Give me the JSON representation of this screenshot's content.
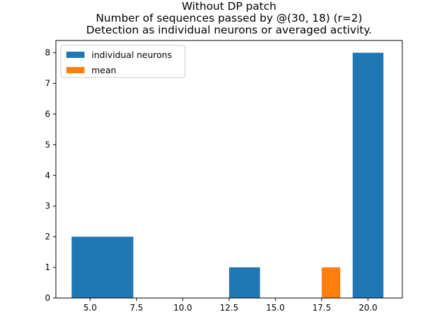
{
  "chart_data": {
    "type": "bar",
    "title_lines": [
      "Without DP patch",
      "Number of sequences passed by @(30, 18) (r=2)",
      "Detection as individual neurons or averaged activity."
    ],
    "xlabel": "",
    "ylabel": "",
    "xlim": [
      3.15,
      21.85
    ],
    "ylim": [
      0,
      8.4
    ],
    "x_ticks": [
      5.0,
      7.5,
      10.0,
      12.5,
      15.0,
      17.5,
      20.0
    ],
    "x_tick_labels": [
      "5.0",
      "7.5",
      "10.0",
      "12.5",
      "15.0",
      "17.5",
      "20.0"
    ],
    "y_ticks": [
      0,
      1,
      2,
      3,
      4,
      5,
      6,
      7,
      8
    ],
    "y_tick_labels": [
      "0",
      "1",
      "2",
      "3",
      "4",
      "5",
      "6",
      "7",
      "8"
    ],
    "grid": false,
    "legend_position": "top-left",
    "series": [
      {
        "name": "individual neurons",
        "color": "#1f77b4",
        "bins": [
          {
            "x0": 4.0,
            "x1": 7.33,
            "value": 2
          },
          {
            "x0": 12.5,
            "x1": 14.17,
            "value": 1
          },
          {
            "x0": 19.17,
            "x1": 20.83,
            "value": 8
          }
        ]
      },
      {
        "name": "mean",
        "color": "#ff7f0e",
        "bins": [
          {
            "x0": 17.5,
            "x1": 18.5,
            "value": 1
          }
        ]
      }
    ]
  }
}
